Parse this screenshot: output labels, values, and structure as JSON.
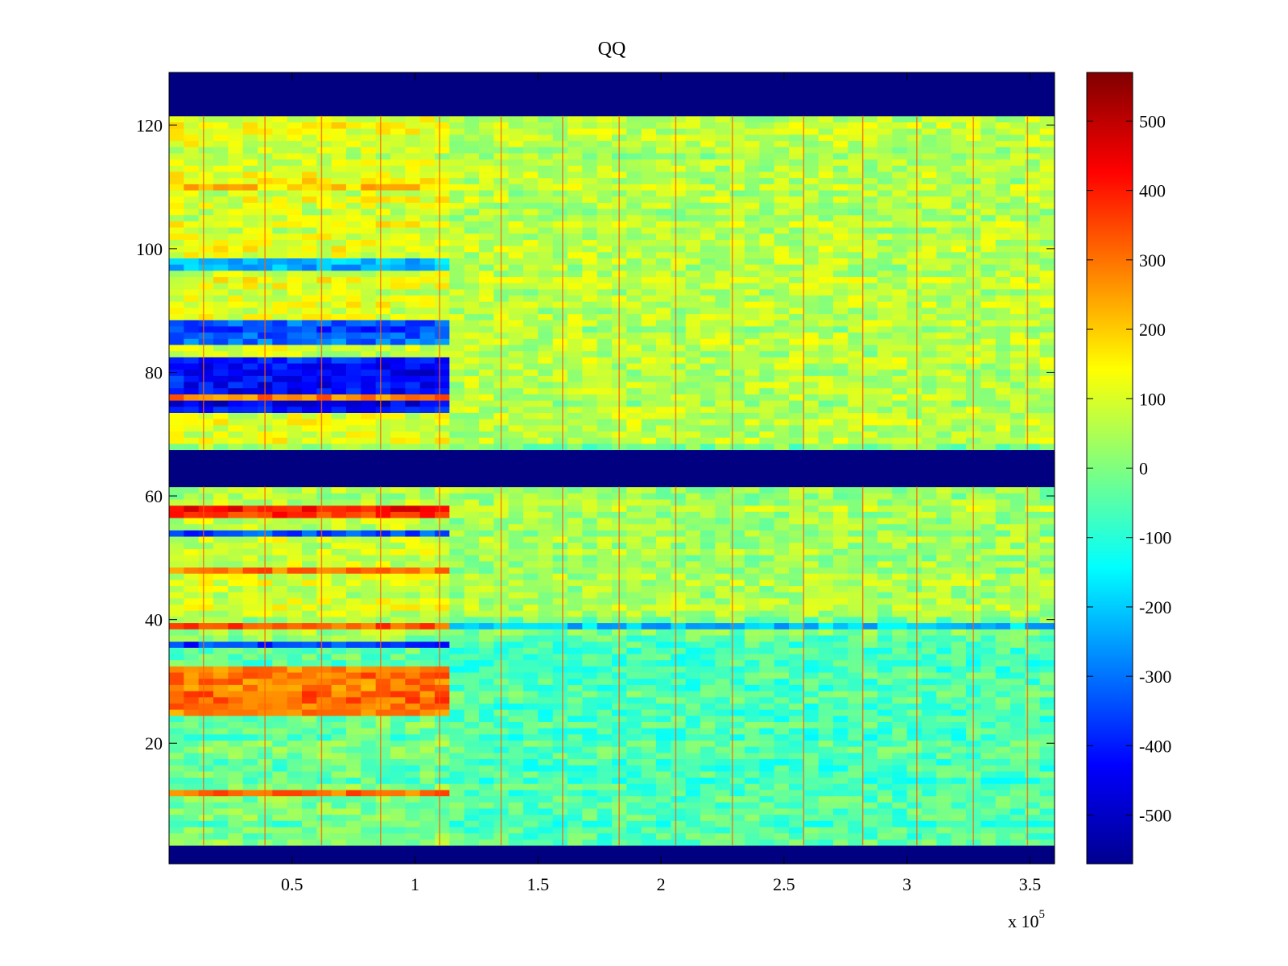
{
  "chart_data": {
    "type": "heatmap",
    "title": "QQ",
    "xlabel": "",
    "ylabel": "",
    "x_multiplier_label": "x 10",
    "x_multiplier_exponent": "5",
    "xlim": [
      0,
      3.6
    ],
    "ylim": [
      0.5,
      128.5
    ],
    "x_ticks": [
      0.5,
      1,
      1.5,
      2,
      2.5,
      3,
      3.5
    ],
    "x_tick_labels": [
      "0.5",
      "1",
      "1.5",
      "2",
      "2.5",
      "3",
      "3.5"
    ],
    "y_ticks": [
      20,
      40,
      60,
      80,
      100,
      120
    ],
    "y_tick_labels": [
      "20",
      "40",
      "60",
      "80",
      "100",
      "120"
    ],
    "colormap": "jet",
    "clim": [
      -570,
      570
    ],
    "colorbar_ticks": [
      500,
      400,
      300,
      200,
      100,
      0,
      -100,
      -200,
      -300,
      -400,
      -500
    ],
    "colorbar_tick_labels": [
      "500",
      "400",
      "300",
      "200",
      "100",
      "0",
      "-100",
      "-200",
      "-300",
      "-400",
      "-500"
    ],
    "empty_row_bands": [
      [
        0.5,
        3.5
      ],
      [
        61.5,
        67.5
      ],
      [
        121.5,
        128.5
      ]
    ],
    "regime_change_x": 1.1,
    "early_regime_rows": [
      {
        "rows": [
          73.5,
          82.5
        ],
        "value": -420
      },
      {
        "rows": [
          75.5,
          76.5
        ],
        "value": 290
      },
      {
        "rows": [
          84.5,
          88.5
        ],
        "value": -330
      },
      {
        "rows": [
          96.5,
          98.5
        ],
        "value": -220
      },
      {
        "rows": [
          109.5,
          111.5
        ],
        "value": 170
      },
      {
        "rows": [
          56.5,
          58.5
        ],
        "value": 380
      },
      {
        "rows": [
          53.5,
          54.5
        ],
        "value": -330
      },
      {
        "rows": [
          47.5,
          48.5
        ],
        "value": 320
      },
      {
        "rows": [
          38.5,
          39.5
        ],
        "value": 320
      },
      {
        "rows": [
          35.5,
          36.5
        ],
        "value": -370
      },
      {
        "rows": [
          24.5,
          32.5
        ],
        "value": 290
      },
      {
        "rows": [
          11.5,
          12.5
        ],
        "value": 310
      }
    ],
    "late_regime_rows": [
      {
        "rows": [
          68.5,
          121.5
        ],
        "value": 60
      },
      {
        "rows": [
          38.5,
          39.5
        ],
        "value": -220
      },
      {
        "rows": [
          3.5,
          37.5
        ],
        "value": -60
      },
      {
        "rows": [
          40.5,
          61.5
        ],
        "value": 40
      }
    ],
    "vertical_streak_x": [
      0.14,
      0.39,
      0.62,
      0.86,
      1.1,
      1.35,
      1.6,
      1.83,
      2.06,
      2.29,
      2.58,
      2.82,
      3.04,
      3.27,
      3.49
    ]
  }
}
